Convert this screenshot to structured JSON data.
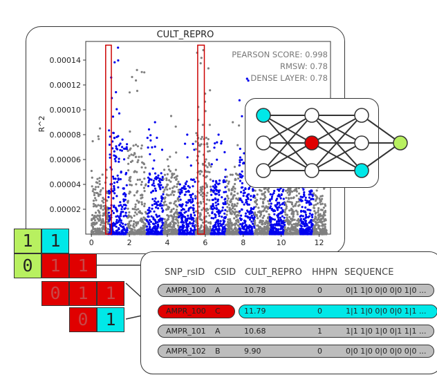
{
  "plot": {
    "title": "CULT_REPRO",
    "ylabel": "R^2",
    "metrics": [
      "PEARSON SCORE: 0.998",
      "RMSW: 0.78",
      "DENSE LAYER: 0.78"
    ],
    "x_ticks": [
      "0",
      "2",
      "4",
      "6",
      "8",
      "10",
      "12"
    ],
    "y_ticks": [
      "0.00014",
      "0.00012",
      "0.00010",
      "0.00008",
      "0.00006",
      "0.00004",
      "0.00002"
    ],
    "colors": {
      "grey": "#808080",
      "blue": "#0000ee",
      "highlight": "#cc0000"
    }
  },
  "chart_data": {
    "type": "scatter",
    "title": "CULT_REPRO",
    "xlabel": "",
    "ylabel": "R^2",
    "xlim": [
      -0.3,
      12.6
    ],
    "ylim": [
      0,
      0.000155
    ],
    "groups": [
      {
        "x_range": [
          0.0,
          0.9
        ],
        "color": "grey",
        "peak": 8.5e-05
      },
      {
        "x_range": [
          0.9,
          1.9
        ],
        "color": "blue",
        "peak": 0.00015
      },
      {
        "x_range": [
          1.9,
          2.9
        ],
        "color": "grey",
        "peak": 0.000132
      },
      {
        "x_range": [
          2.9,
          3.8
        ],
        "color": "blue",
        "peak": 9e-05
      },
      {
        "x_range": [
          3.8,
          4.6
        ],
        "color": "grey",
        "peak": 9.5e-05
      },
      {
        "x_range": [
          4.6,
          5.5
        ],
        "color": "blue",
        "peak": 8e-05
      },
      {
        "x_range": [
          5.5,
          6.3
        ],
        "color": "grey",
        "peak": 0.000148
      },
      {
        "x_range": [
          6.3,
          7.1
        ],
        "color": "blue",
        "peak": 8e-05
      },
      {
        "x_range": [
          7.1,
          7.8
        ],
        "color": "grey",
        "peak": 9e-05
      },
      {
        "x_range": [
          7.8,
          8.6
        ],
        "color": "blue",
        "peak": 0.000125
      },
      {
        "x_range": [
          8.6,
          9.4
        ],
        "color": "grey",
        "peak": 8e-05
      },
      {
        "x_range": [
          9.4,
          10.2
        ],
        "color": "blue",
        "peak": 7e-05
      },
      {
        "x_range": [
          10.2,
          11.0
        ],
        "color": "grey",
        "peak": 7.5e-05
      },
      {
        "x_range": [
          11.0,
          11.7
        ],
        "color": "blue",
        "peak": 9e-05
      },
      {
        "x_range": [
          11.7,
          12.4
        ],
        "color": "grey",
        "peak": 6e-05
      }
    ],
    "highlight_windows": [
      {
        "x_range": [
          0.75,
          1.05
        ],
        "y_range": [
          0,
          0.000152
        ]
      },
      {
        "x_range": [
          5.6,
          5.95
        ],
        "y_range": [
          0,
          0.000152
        ]
      }
    ]
  },
  "network": {
    "layers": [
      [
        "#00e8e8",
        "#ffffff",
        "#ffffff"
      ],
      [
        "#ffffff",
        "#e00000",
        "#ffffff"
      ],
      [
        "#ffffff",
        "#ffffff",
        "#00e8e8"
      ],
      [
        "#b8f060"
      ]
    ]
  },
  "matrix": {
    "cells": [
      {
        "text": "1",
        "color": "#b8f060"
      },
      {
        "text": "1",
        "color": "#00e8e8"
      },
      {
        "text": "0",
        "color": "#b8f060"
      },
      {
        "text": "1",
        "color": "#e00000"
      },
      {
        "text": "1",
        "color": "#e00000"
      },
      {
        "text": "0",
        "color": "#e00000"
      },
      {
        "text": "1",
        "color": "#e00000"
      },
      {
        "text": "1",
        "color": "#e00000"
      },
      {
        "text": "0",
        "color": "#e00000"
      },
      {
        "text": "1",
        "color": "#00e8e8"
      }
    ]
  },
  "table": {
    "headers": [
      "SNP_rsID",
      "CSID",
      "CULT_REPRO",
      "HHPN",
      "SEQUENCE"
    ],
    "rows": [
      [
        "AMPR_100",
        "A",
        "10.78",
        "0",
        "0|1 1|0 0|0 0|0 1|0 ..."
      ],
      [
        "AMPR_100",
        "C",
        "11.79",
        "0",
        "1|1 1|0 0|0 0|0 1|1 ..."
      ],
      [
        "AMPR_101",
        "A",
        "10.68",
        "1",
        "1|1 1|0 1|0 0|1 1|1 ..."
      ],
      [
        "AMPR_102",
        "B",
        "9.90",
        "0",
        "0|0 1|0 0|0 0|0 0|0 ..."
      ]
    ]
  }
}
